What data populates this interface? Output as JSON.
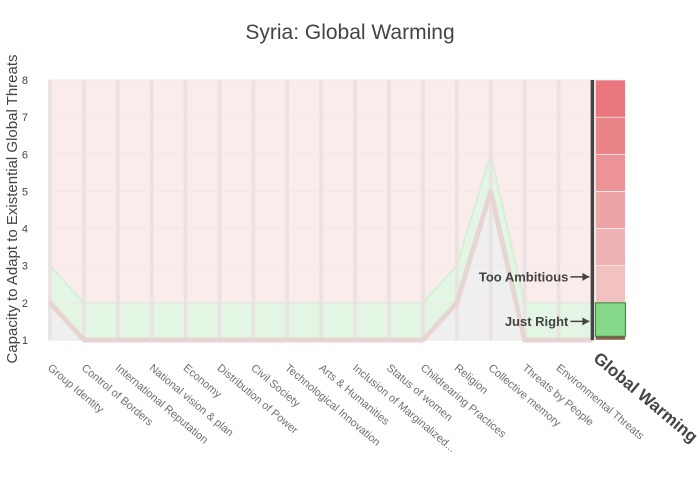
{
  "colors": {
    "too_ambitious_band": "#fbecec",
    "just_right_band": "#e3f6e4",
    "below_band": "#efefef",
    "country_line": "#e6d5d3",
    "gridline": "#e9e1e1",
    "highlight_axis": "#444444",
    "scale_red_top": "#e8737a",
    "scale_red_bottom": "#f4c4c4",
    "scale_green": "#86d98a",
    "scale_brown": "#8a5a44"
  },
  "chart_data": {
    "type": "line",
    "title": "Syria: Global Warming",
    "xlabel": "",
    "ylabel": "Capacity to Adapt to Existential Global Threats",
    "ylim": [
      1,
      8
    ],
    "yticks": [
      1,
      2,
      3,
      4,
      5,
      6,
      7,
      8
    ],
    "grid": true,
    "categories": [
      "Group Identity",
      "Control of Borders",
      "International Reputation",
      "National vision & plan",
      "Economy",
      "Distribution of Power",
      "Civil Society",
      "Technological Innovation",
      "Arts & Humanities",
      "Inclusion of Marginalized...",
      "Status of women",
      "Childrearing Practices",
      "Religion",
      "Collective memory",
      "Threats by People",
      "Environmental Threats",
      "Global Warming"
    ],
    "series": [
      {
        "values": [
          2,
          1,
          1,
          1,
          1,
          1,
          1,
          1,
          1,
          1,
          1,
          1,
          2,
          5,
          1,
          1,
          1
        ]
      }
    ],
    "bands": {
      "just_right_upper": [
        3,
        2,
        2,
        2,
        2,
        2,
        2,
        2,
        2,
        2,
        2,
        2,
        3,
        6,
        2,
        2,
        2
      ]
    },
    "highlight_axis": "Global Warming",
    "highlight_scale": [
      {
        "from": 1,
        "to": 1.1,
        "color": "#8a5a44"
      },
      {
        "from": 1.1,
        "to": 2,
        "color": "#86d98a"
      },
      {
        "from": 2,
        "to": 3,
        "color": "#f2c1c2"
      },
      {
        "from": 3,
        "to": 4,
        "color": "#f0b3b5"
      },
      {
        "from": 4,
        "to": 5,
        "color": "#eda4a7"
      },
      {
        "from": 5,
        "to": 6,
        "color": "#eb9396"
      },
      {
        "from": 6,
        "to": 7,
        "color": "#e98589"
      },
      {
        "from": 7,
        "to": 8,
        "color": "#e8767c"
      }
    ],
    "annotations": [
      {
        "text": "Too Ambitious",
        "y": 2.7
      },
      {
        "text": "Just Right",
        "y": 1.5
      }
    ]
  }
}
